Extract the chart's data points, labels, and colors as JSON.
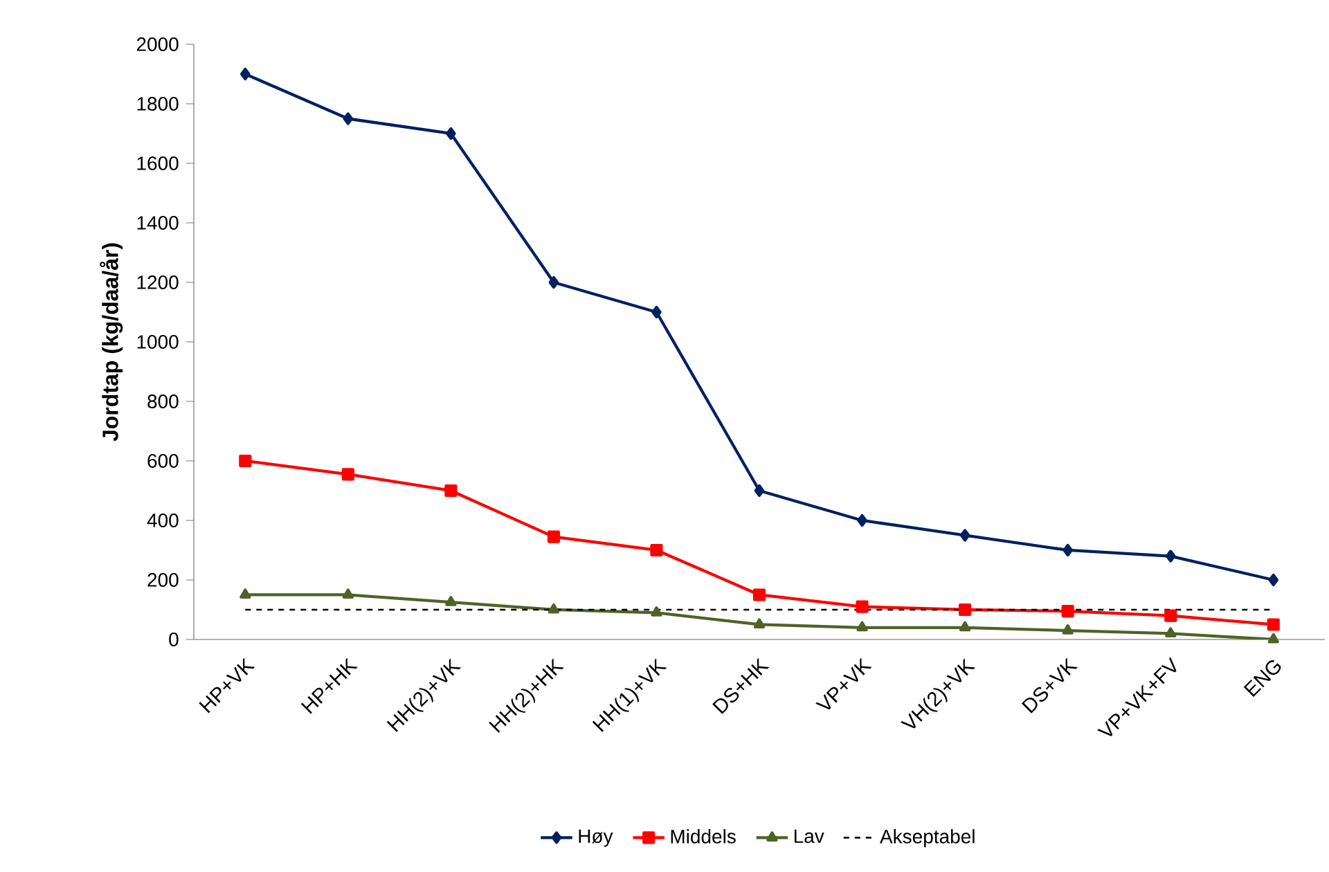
{
  "chart_data": {
    "type": "line",
    "ylabel": "Jordtap (kg/daa/år)",
    "categories": [
      "HP+VK",
      "HP+HK",
      "HH(2)+VK",
      "HH(2)+HK",
      "HH(1)+VK",
      "DS+HK",
      "VP+VK",
      "VH(2)+VK",
      "DS+VK",
      "VP+VK+FV",
      "ENG"
    ],
    "series": [
      {
        "name": "Høy",
        "color": "#002060",
        "marker": "diamond",
        "line_style": "solid",
        "values": [
          1900,
          1750,
          1700,
          1200,
          1100,
          500,
          400,
          350,
          300,
          280,
          200
        ]
      },
      {
        "name": "Middels",
        "color": "#ff0000",
        "marker": "square",
        "line_style": "solid",
        "values": [
          600,
          555,
          500,
          345,
          300,
          150,
          110,
          100,
          95,
          80,
          50
        ]
      },
      {
        "name": "Lav",
        "color": "#4f6228",
        "marker": "triangle",
        "line_style": "solid",
        "values": [
          150,
          150,
          125,
          100,
          90,
          50,
          40,
          40,
          30,
          20,
          0
        ]
      },
      {
        "name": "Akseptabel",
        "color": "#000000",
        "marker": "none",
        "line_style": "dashed",
        "values": [
          100,
          100,
          100,
          100,
          100,
          100,
          100,
          100,
          100,
          100,
          100
        ]
      }
    ],
    "ylim": [
      0,
      2000
    ],
    "yticks": [
      0,
      200,
      400,
      600,
      800,
      1000,
      1200,
      1400,
      1600,
      1800,
      2000
    ],
    "grid": false,
    "legend": "bottom"
  }
}
